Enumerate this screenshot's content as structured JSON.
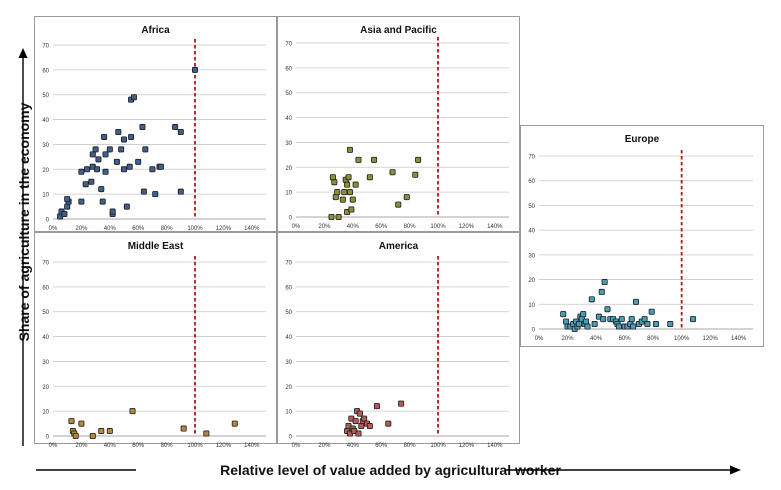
{
  "ylabel": "Share of agriculture in the economy",
  "xlabel": "Relative level of value added by agricultural worker",
  "chart_data": [
    {
      "type": "scatter",
      "title": "Africa",
      "color": "#3f5f8c",
      "ylim": [
        0,
        70
      ],
      "yticks": [
        0,
        10,
        20,
        30,
        40,
        50,
        60,
        70
      ],
      "xlim": [
        0,
        1.5
      ],
      "xticks": [
        0,
        0.2,
        0.4,
        0.6,
        0.8,
        1.0,
        1.2,
        1.4
      ],
      "xtick_labels": [
        "0%",
        "20%",
        "40%",
        "60%",
        "80%",
        "100%",
        "120%",
        "140%"
      ],
      "reference_line_x": 1.0,
      "grid": true,
      "x": [
        0.05,
        0.06,
        0.08,
        0.1,
        0.11,
        0.1,
        0.2,
        0.2,
        0.23,
        0.24,
        0.27,
        0.28,
        0.3,
        0.28,
        0.31,
        0.32,
        0.34,
        0.35,
        0.36,
        0.37,
        0.37,
        0.4,
        0.42,
        0.42,
        0.45,
        0.46,
        0.48,
        0.5,
        0.5,
        0.52,
        0.54,
        0.55,
        0.55,
        0.57,
        0.6,
        0.63,
        0.64,
        0.65,
        0.7,
        0.72,
        0.75,
        0.76,
        0.86,
        0.9,
        0.9,
        1.0
      ],
      "y": [
        1,
        3,
        2,
        5,
        7,
        8,
        7,
        19,
        14,
        20,
        15,
        26,
        28,
        21,
        20,
        24,
        12,
        7,
        33,
        26,
        19,
        28,
        2,
        3,
        23,
        35,
        28,
        20,
        32,
        5,
        21,
        48,
        33,
        49,
        23,
        37,
        11,
        28,
        20,
        10,
        21,
        21,
        37,
        35,
        11,
        60
      ]
    },
    {
      "type": "scatter",
      "title": "Asia and Pacific",
      "color": "#8a8f3a",
      "ylim": [
        0,
        70
      ],
      "yticks": [
        0,
        10,
        20,
        30,
        40,
        50,
        60,
        70
      ],
      "xlim": [
        0,
        1.5
      ],
      "xticks": [
        0,
        0.2,
        0.4,
        0.6,
        0.8,
        1.0,
        1.2,
        1.4
      ],
      "xtick_labels": [
        "0%",
        "20%",
        "40%",
        "60%",
        "80%",
        "100%",
        "120%",
        "140%"
      ],
      "reference_line_x": 1.0,
      "grid": true,
      "x": [
        0.25,
        0.27,
        0.26,
        0.28,
        0.29,
        0.3,
        0.33,
        0.34,
        0.35,
        0.36,
        0.37,
        0.38,
        0.36,
        0.38,
        0.39,
        0.4,
        0.42,
        0.44,
        0.52,
        0.55,
        0.68,
        0.72,
        0.78,
        0.84,
        0.86
      ],
      "y": [
        0,
        14,
        16,
        8,
        10,
        0,
        7,
        10,
        15,
        13,
        16,
        27,
        2,
        10,
        3,
        7,
        13,
        23,
        16,
        23,
        18,
        5,
        8,
        17,
        23
      ]
    },
    {
      "type": "scatter",
      "title": "Europe",
      "color": "#4a9cb8",
      "ylim": [
        0,
        70
      ],
      "yticks": [
        0,
        10,
        20,
        30,
        40,
        50,
        60,
        70
      ],
      "xlim": [
        0,
        1.5
      ],
      "xticks": [
        0,
        0.2,
        0.4,
        0.6,
        0.8,
        1.0,
        1.2,
        1.4
      ],
      "xtick_labels": [
        "0%",
        "20%",
        "40%",
        "60%",
        "80%",
        "100%",
        "120%",
        "140%"
      ],
      "reference_line_x": 1.0,
      "grid": true,
      "x": [
        0.17,
        0.19,
        0.2,
        0.22,
        0.24,
        0.25,
        0.26,
        0.27,
        0.28,
        0.29,
        0.3,
        0.31,
        0.32,
        0.33,
        0.34,
        0.37,
        0.39,
        0.42,
        0.44,
        0.45,
        0.46,
        0.48,
        0.5,
        0.52,
        0.54,
        0.55,
        0.56,
        0.58,
        0.6,
        0.62,
        0.64,
        0.65,
        0.66,
        0.68,
        0.7,
        0.72,
        0.74,
        0.76,
        0.79,
        0.82,
        0.92,
        1.08
      ],
      "y": [
        6,
        3,
        1,
        1,
        2,
        0,
        3,
        1,
        2,
        5,
        4,
        6,
        2,
        3,
        1,
        12,
        2,
        5,
        15,
        4,
        19,
        8,
        4,
        4,
        3,
        2,
        1,
        4,
        1,
        1,
        2,
        4,
        1,
        11,
        2,
        3,
        4,
        2,
        7,
        2,
        2,
        4
      ]
    },
    {
      "type": "scatter",
      "title": "Middle East",
      "color": "#b8863f",
      "ylim": [
        0,
        70
      ],
      "yticks": [
        0,
        10,
        20,
        30,
        40,
        50,
        60,
        70
      ],
      "xlim": [
        0,
        1.5
      ],
      "xticks": [
        0,
        0.2,
        0.4,
        0.6,
        0.8,
        1.0,
        1.2,
        1.4
      ],
      "xtick_labels": [
        "0%",
        "20%",
        "40%",
        "60%",
        "80%",
        "100%",
        "120%",
        "140%"
      ],
      "reference_line_x": 1.0,
      "grid": true,
      "x": [
        0.13,
        0.14,
        0.15,
        0.16,
        0.2,
        0.28,
        0.34,
        0.4,
        0.56,
        0.92,
        1.08,
        1.28
      ],
      "y": [
        6,
        2,
        1,
        0,
        5,
        0,
        2,
        2,
        10,
        3,
        1,
        5
      ]
    },
    {
      "type": "scatter",
      "title": "America",
      "color": "#b55a5a",
      "ylim": [
        0,
        70
      ],
      "yticks": [
        0,
        10,
        20,
        30,
        40,
        50,
        60,
        70
      ],
      "xlim": [
        0,
        1.5
      ],
      "xticks": [
        0,
        0.2,
        0.4,
        0.6,
        0.8,
        1.0,
        1.2,
        1.4
      ],
      "xtick_labels": [
        "0%",
        "20%",
        "40%",
        "60%",
        "80%",
        "100%",
        "120%",
        "140%"
      ],
      "reference_line_x": 1.0,
      "grid": true,
      "x": [
        0.36,
        0.37,
        0.38,
        0.39,
        0.4,
        0.41,
        0.42,
        0.43,
        0.44,
        0.45,
        0.46,
        0.47,
        0.48,
        0.5,
        0.52,
        0.57,
        0.65,
        0.74
      ],
      "y": [
        2,
        4,
        1,
        7,
        3,
        2,
        6,
        10,
        1,
        9,
        4,
        6,
        7,
        5,
        4,
        12,
        5,
        13
      ]
    }
  ]
}
